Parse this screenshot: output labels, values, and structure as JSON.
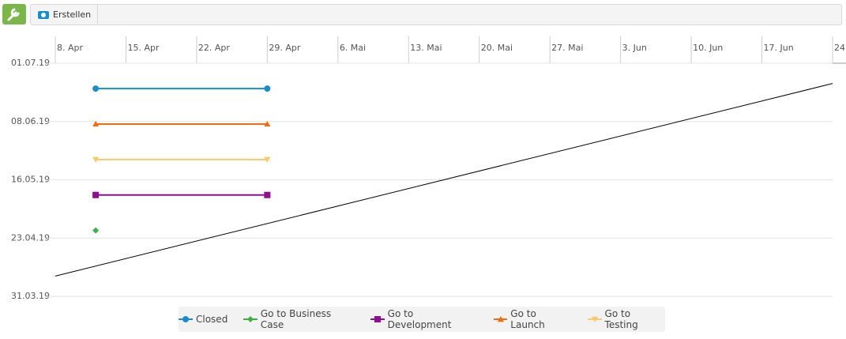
{
  "toolbar": {
    "button": "Erstellen"
  },
  "chart_data": {
    "type": "line",
    "xlim": [
      "04-08",
      "06-24"
    ],
    "xticks": [
      {
        "value": "04-08",
        "label": "8. Apr"
      },
      {
        "value": "04-15",
        "label": "15. Apr"
      },
      {
        "value": "04-22",
        "label": "22. Apr"
      },
      {
        "value": "04-29",
        "label": "29. Apr"
      },
      {
        "value": "05-06",
        "label": "6. Mai"
      },
      {
        "value": "05-13",
        "label": "13. Mai"
      },
      {
        "value": "05-20",
        "label": "20. Mai"
      },
      {
        "value": "05-27",
        "label": "27. Mai"
      },
      {
        "value": "06-03",
        "label": "3. Jun"
      },
      {
        "value": "06-10",
        "label": "10. Jun"
      },
      {
        "value": "06-17",
        "label": "17. Jun"
      },
      {
        "value": "06-24",
        "label": "24. Jun"
      }
    ],
    "ylim": [
      "31.03.19",
      "01.07.19"
    ],
    "yticks": [
      "31.03.19",
      "23.04.19",
      "16.05.19",
      "08.06.19",
      "01.07.19"
    ],
    "grid": true,
    "series": [
      {
        "name": "Closed",
        "color": "#1a8ccb",
        "marker": "circle",
        "x": [
          "04-12",
          "04-29"
        ],
        "values": [
          "21.06.19",
          "21.06.19"
        ]
      },
      {
        "name": "Go to Business Case",
        "color": "#3cb043",
        "marker": "diamond",
        "x": [
          "04-12"
        ],
        "values": [
          "26.04.19"
        ]
      },
      {
        "name": "Go to Development",
        "color": "#8e0e8e",
        "marker": "square",
        "x": [
          "04-12",
          "04-29"
        ],
        "values": [
          "10.05.19",
          "10.05.19"
        ]
      },
      {
        "name": "Go to Launch",
        "color": "#f26b0f",
        "marker": "triangle",
        "x": [
          "04-12",
          "04-29"
        ],
        "values": [
          "07.06.19",
          "07.06.19"
        ]
      },
      {
        "name": "Go to Testing",
        "color": "#fdc86a",
        "marker": "triangle-down",
        "x": [
          "04-12",
          "04-29"
        ],
        "values": [
          "24.05.19",
          "24.05.19"
        ]
      }
    ],
    "reference_line": {
      "color": "#000000",
      "x": [
        "04-08",
        "06-24"
      ],
      "values": [
        "08.04.19",
        "23.06.19"
      ]
    }
  }
}
